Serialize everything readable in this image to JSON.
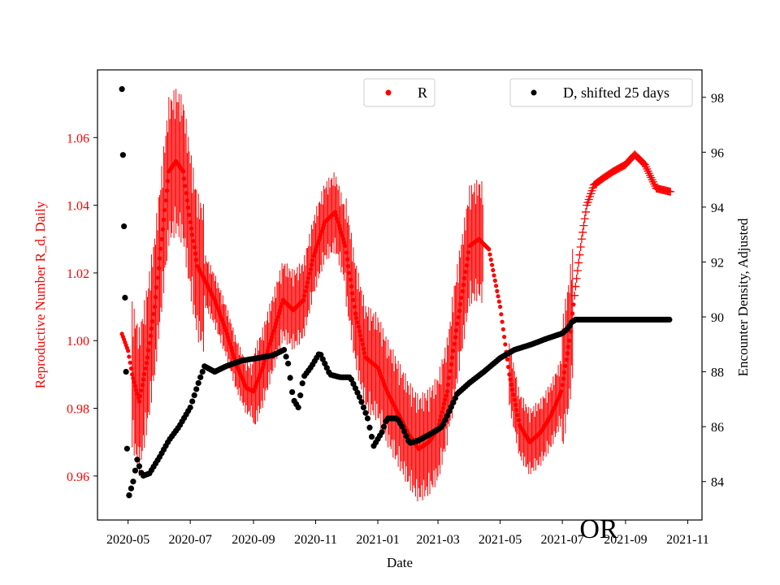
{
  "chart_data": {
    "type": "scatter",
    "state_label": "OR",
    "xlabel": "Date",
    "xlim": [
      "2020-04-01",
      "2021-11-15"
    ],
    "x_ticks": [
      "2020-05-01",
      "2020-07-01",
      "2020-09-01",
      "2020-11-01",
      "2021-01-01",
      "2021-03-01",
      "2021-05-01",
      "2021-07-01",
      "2021-09-01",
      "2021-11-01"
    ],
    "x_tick_labels": [
      "2020-05",
      "2020-07",
      "2020-09",
      "2020-11",
      "2021-01",
      "2021-03",
      "2021-05",
      "2021-07",
      "2021-09",
      "2021-11"
    ],
    "y_left": {
      "label": "Reproductive Number R_d, Daily",
      "color": "#ff0000",
      "ylim": [
        0.947,
        1.08
      ],
      "ticks": [
        0.96,
        0.98,
        1.0,
        1.02,
        1.04,
        1.06
      ],
      "tick_labels": [
        "0.96",
        "0.98",
        "1.00",
        "1.02",
        "1.04",
        "1.06"
      ]
    },
    "y_right": {
      "label": "Encounter Density, Adjusted",
      "color": "#000000",
      "ylim": [
        82.6,
        99.0
      ],
      "ticks": [
        84,
        86,
        88,
        90,
        92,
        94,
        96,
        98
      ],
      "tick_labels": [
        "84",
        "86",
        "88",
        "90",
        "92",
        "94",
        "96",
        "98"
      ]
    },
    "legend_left": {
      "label": "R",
      "color": "#ff0000",
      "placement": "top-center"
    },
    "legend_right": {
      "label": "D, shifted 25 days",
      "color": "#000000",
      "placement": "top-right"
    },
    "series": [
      {
        "name": "R",
        "axis": "left",
        "color": "#ff0000",
        "marker": "dot",
        "x_start": "2020-04-25",
        "x_end": "2021-10-15",
        "keypoints": [
          [
            "2020-04-25",
            1.002
          ],
          [
            "2020-05-01",
            0.997
          ],
          [
            "2020-05-05",
            0.99
          ],
          [
            "2020-05-12",
            0.982
          ],
          [
            "2020-05-20",
            0.995
          ],
          [
            "2020-05-27",
            1.01
          ],
          [
            "2020-06-03",
            1.03
          ],
          [
            "2020-06-10",
            1.05
          ],
          [
            "2020-06-17",
            1.053
          ],
          [
            "2020-06-24",
            1.05
          ],
          [
            "2020-07-01",
            1.035
          ],
          [
            "2020-07-08",
            1.022
          ],
          [
            "2020-07-15",
            1.018
          ],
          [
            "2020-07-25",
            1.012
          ],
          [
            "2020-08-05",
            1.003
          ],
          [
            "2020-08-15",
            0.993
          ],
          [
            "2020-08-25",
            0.986
          ],
          [
            "2020-09-01",
            0.985
          ],
          [
            "2020-09-10",
            0.992
          ],
          [
            "2020-09-20",
            1.002
          ],
          [
            "2020-09-30",
            1.012
          ],
          [
            "2020-10-10",
            1.009
          ],
          [
            "2020-10-20",
            1.012
          ],
          [
            "2020-10-30",
            1.025
          ],
          [
            "2020-11-10",
            1.035
          ],
          [
            "2020-11-20",
            1.038
          ],
          [
            "2020-11-30",
            1.028
          ],
          [
            "2020-12-10",
            1.008
          ],
          [
            "2020-12-20",
            0.995
          ],
          [
            "2021-01-01",
            0.992
          ],
          [
            "2021-01-10",
            0.985
          ],
          [
            "2021-01-20",
            0.979
          ],
          [
            "2021-02-01",
            0.972
          ],
          [
            "2021-02-10",
            0.968
          ],
          [
            "2021-02-20",
            0.97
          ],
          [
            "2021-03-01",
            0.974
          ],
          [
            "2021-03-10",
            0.985
          ],
          [
            "2021-03-20",
            1.005
          ],
          [
            "2021-04-01",
            1.028
          ],
          [
            "2021-04-10",
            1.03
          ],
          [
            "2021-04-20",
            1.027
          ],
          [
            "2021-05-01",
            1.01
          ],
          [
            "2021-05-10",
            0.99
          ],
          [
            "2021-05-20",
            0.975
          ],
          [
            "2021-05-30",
            0.97
          ],
          [
            "2021-06-10",
            0.973
          ],
          [
            "2021-06-20",
            0.978
          ],
          [
            "2021-06-30",
            0.985
          ],
          [
            "2021-07-08",
            1.0
          ],
          [
            "2021-07-14",
            1.016
          ],
          [
            "2021-07-20",
            1.03
          ],
          [
            "2021-07-25",
            1.04
          ],
          [
            "2021-08-01",
            1.046
          ],
          [
            "2021-08-10",
            1.048
          ],
          [
            "2021-08-20",
            1.05
          ],
          [
            "2021-09-01",
            1.052
          ],
          [
            "2021-09-10",
            1.055
          ],
          [
            "2021-09-20",
            1.052
          ],
          [
            "2021-10-01",
            1.045
          ],
          [
            "2021-10-15",
            1.044
          ]
        ]
      },
      {
        "name": "D, shifted 25 days",
        "axis": "right",
        "color": "#000000",
        "marker": "dot",
        "keypoints": [
          [
            "2020-04-25",
            98.3
          ],
          [
            "2020-04-26",
            95.9
          ],
          [
            "2020-04-27",
            93.3
          ],
          [
            "2020-04-28",
            90.7
          ],
          [
            "2020-04-29",
            88.0
          ],
          [
            "2020-04-30",
            85.2
          ],
          [
            "2020-05-02",
            83.5
          ],
          [
            "2020-05-06",
            84.0
          ],
          [
            "2020-05-10",
            84.8
          ],
          [
            "2020-05-15",
            84.2
          ],
          [
            "2020-05-22",
            84.3
          ],
          [
            "2020-06-01",
            84.9
          ],
          [
            "2020-06-10",
            85.5
          ],
          [
            "2020-06-20",
            86.0
          ],
          [
            "2020-07-01",
            86.7
          ],
          [
            "2020-07-10",
            87.7
          ],
          [
            "2020-07-15",
            88.2
          ],
          [
            "2020-07-25",
            88.0
          ],
          [
            "2020-08-05",
            88.2
          ],
          [
            "2020-08-20",
            88.4
          ],
          [
            "2020-09-05",
            88.5
          ],
          [
            "2020-09-20",
            88.6
          ],
          [
            "2020-10-01",
            88.8
          ],
          [
            "2020-10-05",
            88.3
          ],
          [
            "2020-10-10",
            87.0
          ],
          [
            "2020-10-15",
            86.7
          ],
          [
            "2020-10-20",
            87.8
          ],
          [
            "2020-10-28",
            88.2
          ],
          [
            "2020-11-05",
            88.7
          ],
          [
            "2020-11-15",
            87.9
          ],
          [
            "2020-11-25",
            87.8
          ],
          [
            "2020-12-05",
            87.8
          ],
          [
            "2020-12-15",
            87.0
          ],
          [
            "2020-12-22",
            86.3
          ],
          [
            "2020-12-28",
            85.3
          ],
          [
            "2021-01-05",
            85.8
          ],
          [
            "2021-01-10",
            86.3
          ],
          [
            "2021-01-20",
            86.3
          ],
          [
            "2021-01-25",
            86.0
          ],
          [
            "2021-02-01",
            85.4
          ],
          [
            "2021-02-10",
            85.5
          ],
          [
            "2021-02-20",
            85.7
          ],
          [
            "2021-03-01",
            85.9
          ],
          [
            "2021-03-05",
            86.0
          ],
          [
            "2021-03-10",
            86.4
          ],
          [
            "2021-03-20",
            87.2
          ],
          [
            "2021-04-01",
            87.6
          ],
          [
            "2021-04-15",
            88.0
          ],
          [
            "2021-05-01",
            88.5
          ],
          [
            "2021-05-15",
            88.8
          ],
          [
            "2021-06-01",
            89.0
          ],
          [
            "2021-06-15",
            89.2
          ],
          [
            "2021-07-01",
            89.4
          ],
          [
            "2021-07-07",
            89.6
          ],
          [
            "2021-07-10",
            89.8
          ],
          [
            "2021-07-14",
            89.9
          ],
          [
            "2021-08-01",
            89.9
          ],
          [
            "2021-09-01",
            89.9
          ],
          [
            "2021-10-01",
            89.9
          ],
          [
            "2021-10-15",
            89.9
          ]
        ]
      }
    ]
  }
}
